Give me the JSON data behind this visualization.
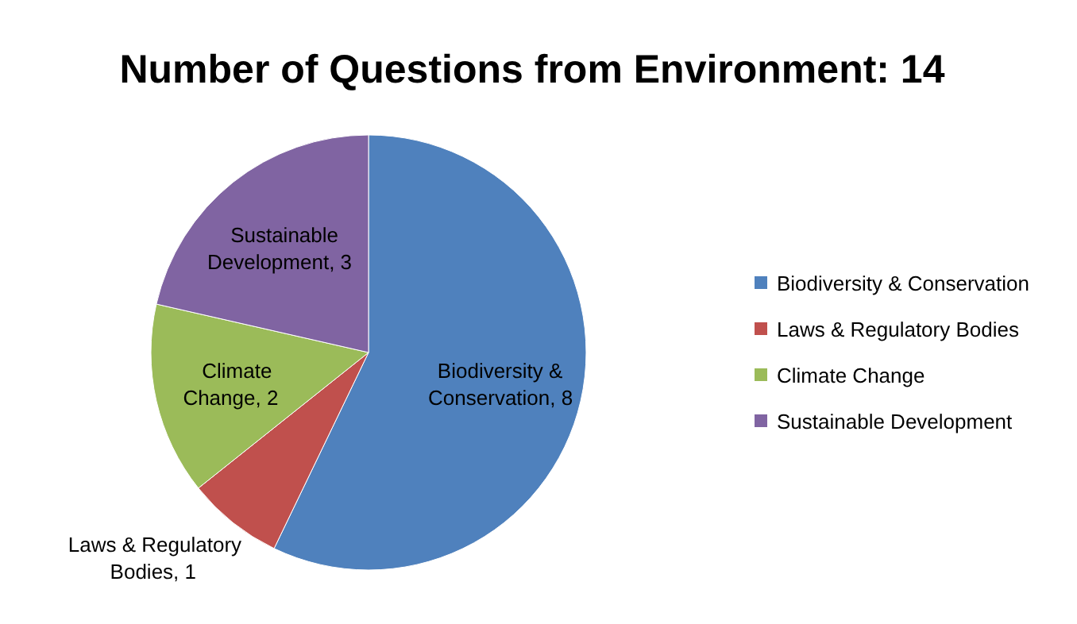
{
  "chart_data": {
    "type": "pie",
    "title": "Number of Questions from Environment: 14",
    "categories": [
      "Biodiversity & Conservation",
      "Laws & Regulatory Bodies",
      "Climate Change",
      "Sustainable Development"
    ],
    "values": [
      8,
      1,
      2,
      3
    ],
    "colors": [
      "#4f81bd",
      "#c0504d",
      "#9bbb59",
      "#8064a2"
    ],
    "value_labels": [
      ", 8",
      ", 1",
      ", 2",
      ", 3"
    ],
    "legend": "right"
  }
}
